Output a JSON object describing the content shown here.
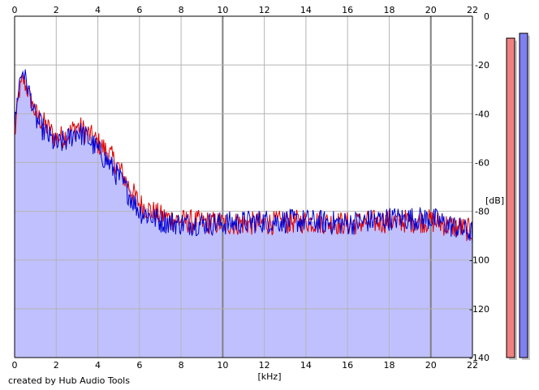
{
  "footer": {
    "credit": "created by Hub Audio Tools"
  },
  "colors": {
    "background": "#ffffff",
    "fill": "#c0c0ff",
    "grid_minor": "#b4b4b4",
    "grid_major": "#808080",
    "left_channel": "#e00000",
    "right_channel": "#0000d0",
    "meter_left": "#f08080",
    "meter_right": "#8080f0"
  },
  "chart_data": {
    "type": "area",
    "title": "",
    "xlabel": "[kHz]",
    "ylabel": "[dB]",
    "xlim": [
      0,
      22
    ],
    "ylim": [
      -140,
      0
    ],
    "x_ticks": [
      0,
      2,
      4,
      6,
      8,
      10,
      12,
      14,
      16,
      18,
      20,
      22
    ],
    "x_tick_labels": [
      "0",
      "2",
      "4",
      "6",
      "8",
      "10",
      "12",
      "14",
      "16",
      "18",
      "20",
      "22"
    ],
    "x_tick_labels_top": [
      "0",
      "2",
      "4",
      "6",
      "8",
      "10",
      "12",
      "14",
      "16",
      "18",
      "20",
      "22"
    ],
    "y_ticks": [
      0,
      -20,
      -40,
      -60,
      -80,
      -100,
      -120,
      -140
    ],
    "y_tick_labels": [
      "0",
      "-20",
      "-40",
      "-60",
      "-80",
      "-100",
      "-120",
      "-140"
    ],
    "grid": true,
    "major_x_gridlines": [
      10,
      20
    ],
    "series": [
      {
        "channel": "left",
        "color": "#e00000",
        "x": [
          0,
          0.2,
          0.4,
          0.6,
          0.8,
          1.0,
          1.5,
          2.0,
          2.5,
          3.0,
          3.5,
          4.0,
          4.5,
          5.0,
          5.5,
          6.0,
          7.0,
          8.0,
          10.0,
          12.0,
          14.0,
          16.0,
          18.0,
          20.0,
          21.0,
          22.0
        ],
        "y": [
          -50,
          -32,
          -26,
          -30,
          -35,
          -40,
          -45,
          -50,
          -49,
          -45,
          -48,
          -52,
          -56,
          -62,
          -70,
          -77,
          -82,
          -84,
          -85,
          -85,
          -84,
          -85,
          -84,
          -84,
          -86,
          -88
        ]
      },
      {
        "channel": "right",
        "color": "#0000d0",
        "x": [
          0,
          0.2,
          0.4,
          0.6,
          0.8,
          1.0,
          1.5,
          2.0,
          2.5,
          3.0,
          3.5,
          4.0,
          4.5,
          5.0,
          5.5,
          6.0,
          7.0,
          8.0,
          10.0,
          12.0,
          14.0,
          16.0,
          18.0,
          20.0,
          21.0,
          22.0
        ],
        "y": [
          -46,
          -28,
          -22,
          -28,
          -34,
          -42,
          -48,
          -53,
          -51,
          -47,
          -50,
          -55,
          -60,
          -66,
          -73,
          -80,
          -84,
          -85,
          -85,
          -84,
          -84,
          -85,
          -83,
          -83,
          -86,
          -89
        ]
      }
    ],
    "fill_envelope": {
      "x": [
        0,
        0.2,
        0.4,
        0.6,
        0.8,
        1.0,
        1.5,
        2.0,
        2.5,
        3.0,
        3.5,
        4.0,
        4.5,
        5.0,
        5.5,
        6.0,
        7.0,
        8.0,
        10.0,
        12.0,
        14.0,
        16.0,
        18.0,
        20.0,
        21.0,
        22.0
      ],
      "y": [
        -46,
        -28,
        -22,
        -28,
        -34,
        -40,
        -45,
        -50,
        -49,
        -45,
        -48,
        -52,
        -56,
        -62,
        -70,
        -77,
        -82,
        -84,
        -85,
        -84,
        -84,
        -85,
        -83,
        -83,
        -86,
        -88
      ]
    },
    "level_meters": [
      {
        "channel": "left",
        "value": -9,
        "color": "#f08080"
      },
      {
        "channel": "right",
        "value": -7,
        "color": "#8080f0"
      }
    ]
  }
}
